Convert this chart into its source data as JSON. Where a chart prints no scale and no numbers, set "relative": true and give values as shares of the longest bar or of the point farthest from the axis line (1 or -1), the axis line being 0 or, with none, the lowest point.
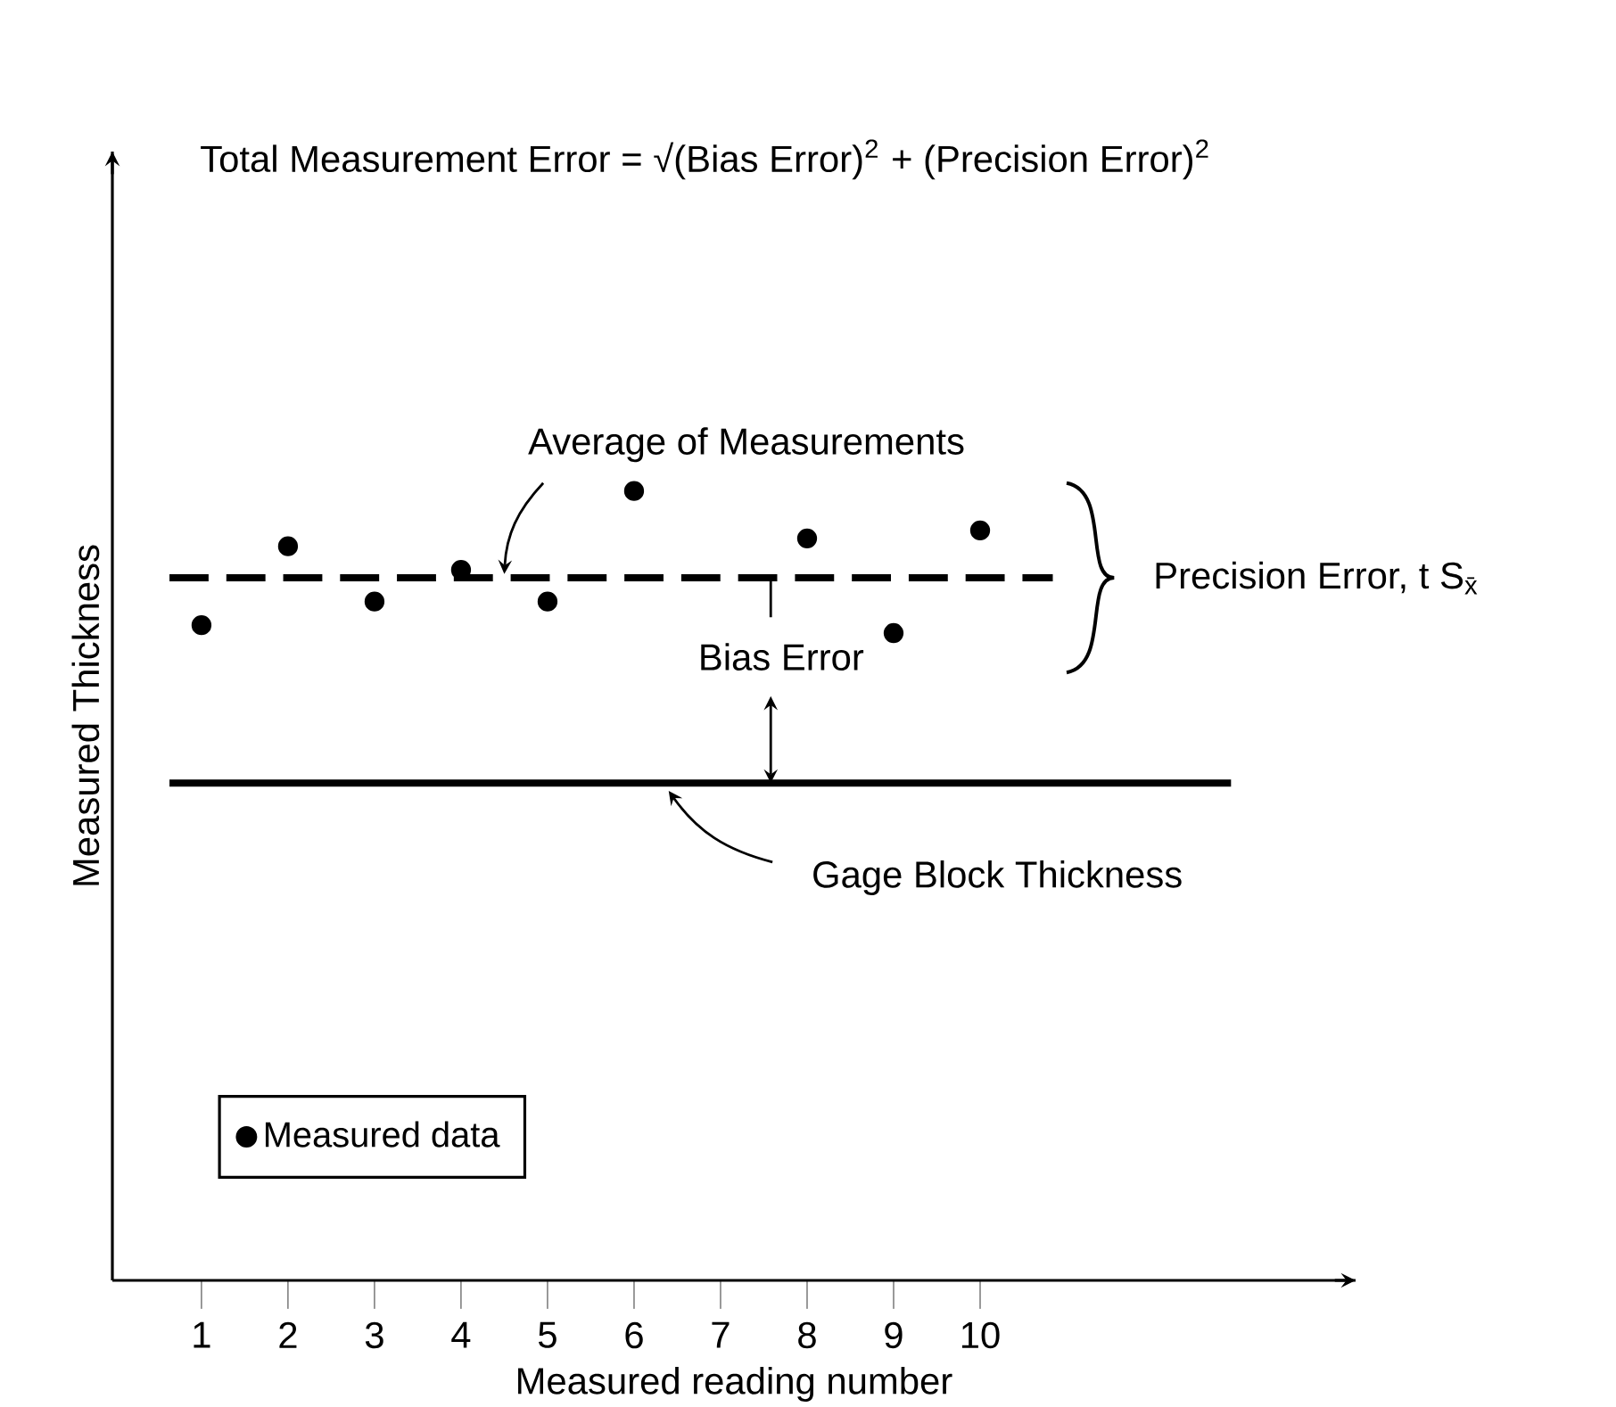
{
  "chart_data": {
    "type": "scatter",
    "title": "Total Measurement Error = √(Bias Error)$^{2}$ + (Precision Error)$^{2}$",
    "xlabel": "Measured reading number",
    "ylabel": "Measured Thickness",
    "categories": [
      "1",
      "2",
      "3",
      "4",
      "5",
      "6",
      "7",
      "8",
      "9",
      "10"
    ],
    "series": [
      {
        "name": "Measured data",
        "color": "#000000",
        "values": [
          0.83,
          0.93,
          0.86,
          0.9,
          0.86,
          1.0,
          null,
          0.94,
          0.82,
          0.95
        ]
      }
    ],
    "relative": true,
    "marker": "circle",
    "legend": "bottom left",
    "ref_lines": [
      {
        "axis": "y",
        "value": 0.89,
        "label": "Average of Measurements",
        "line_style": "dashed",
        "color": "#000000"
      },
      {
        "axis": "y",
        "value": 0.63,
        "label": "Gage Block Thickness",
        "line_style": "solid",
        "color": "#000000"
      }
    ],
    "annotations": [
      "Bias Error",
      "Precision Error, t S$_{x̄}$"
    ]
  }
}
